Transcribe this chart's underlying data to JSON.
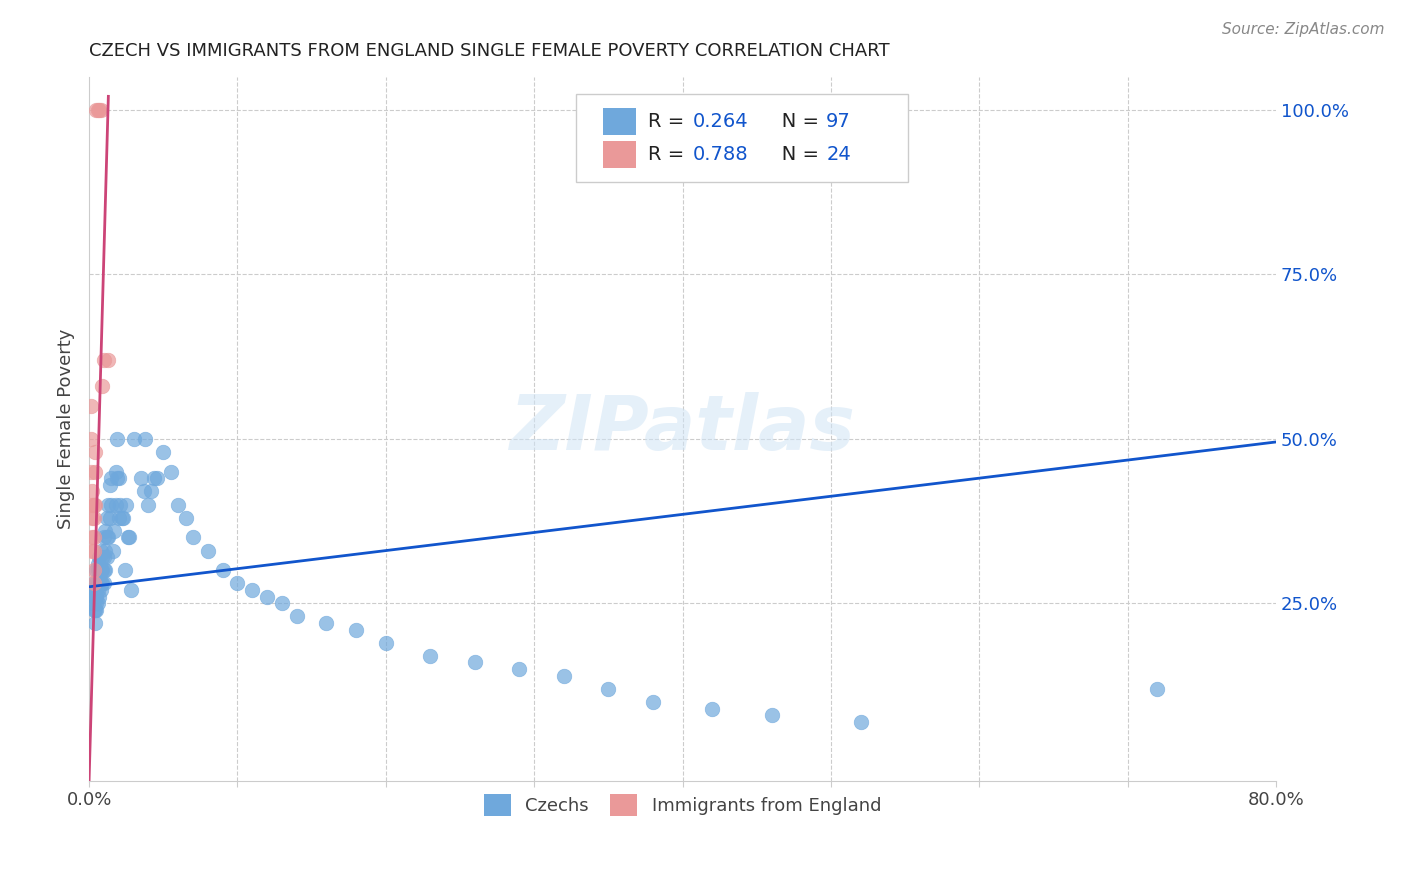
{
  "title": "CZECH VS IMMIGRANTS FROM ENGLAND SINGLE FEMALE POVERTY CORRELATION CHART",
  "source": "Source: ZipAtlas.com",
  "ylabel": "Single Female Poverty",
  "xlim": [
    0.0,
    0.8
  ],
  "ylim": [
    -0.02,
    1.05
  ],
  "blue_color": "#6fa8dc",
  "pink_color": "#ea9999",
  "line_blue": "#1155cc",
  "line_pink": "#cc4477",
  "watermark": "ZIPatlas",
  "czechs_scatter_x": [
    0.002,
    0.002,
    0.003,
    0.003,
    0.003,
    0.004,
    0.004,
    0.004,
    0.004,
    0.005,
    0.005,
    0.005,
    0.005,
    0.005,
    0.005,
    0.006,
    0.006,
    0.006,
    0.006,
    0.006,
    0.007,
    0.007,
    0.007,
    0.007,
    0.007,
    0.008,
    0.008,
    0.008,
    0.008,
    0.009,
    0.009,
    0.009,
    0.01,
    0.01,
    0.01,
    0.01,
    0.011,
    0.011,
    0.011,
    0.012,
    0.012,
    0.012,
    0.013,
    0.013,
    0.014,
    0.014,
    0.015,
    0.015,
    0.016,
    0.017,
    0.018,
    0.018,
    0.019,
    0.019,
    0.02,
    0.02,
    0.021,
    0.022,
    0.023,
    0.024,
    0.025,
    0.026,
    0.027,
    0.028,
    0.03,
    0.035,
    0.037,
    0.038,
    0.04,
    0.042,
    0.044,
    0.046,
    0.05,
    0.055,
    0.06,
    0.065,
    0.07,
    0.08,
    0.09,
    0.1,
    0.11,
    0.12,
    0.13,
    0.14,
    0.16,
    0.18,
    0.2,
    0.23,
    0.26,
    0.29,
    0.32,
    0.35,
    0.38,
    0.42,
    0.46,
    0.52,
    0.72
  ],
  "czechs_scatter_y": [
    0.27,
    0.25,
    0.28,
    0.26,
    0.24,
    0.27,
    0.26,
    0.24,
    0.22,
    0.3,
    0.28,
    0.27,
    0.26,
    0.25,
    0.24,
    0.31,
    0.3,
    0.28,
    0.27,
    0.25,
    0.32,
    0.3,
    0.29,
    0.28,
    0.26,
    0.33,
    0.3,
    0.28,
    0.27,
    0.32,
    0.3,
    0.28,
    0.35,
    0.32,
    0.3,
    0.28,
    0.36,
    0.33,
    0.3,
    0.38,
    0.35,
    0.32,
    0.4,
    0.35,
    0.43,
    0.38,
    0.44,
    0.4,
    0.33,
    0.36,
    0.45,
    0.4,
    0.5,
    0.44,
    0.44,
    0.38,
    0.4,
    0.38,
    0.38,
    0.3,
    0.4,
    0.35,
    0.35,
    0.27,
    0.5,
    0.44,
    0.42,
    0.5,
    0.4,
    0.42,
    0.44,
    0.44,
    0.48,
    0.45,
    0.4,
    0.38,
    0.35,
    0.33,
    0.3,
    0.28,
    0.27,
    0.26,
    0.25,
    0.23,
    0.22,
    0.21,
    0.19,
    0.17,
    0.16,
    0.15,
    0.14,
    0.12,
    0.1,
    0.09,
    0.08,
    0.07,
    0.12
  ],
  "england_scatter_x": [
    0.001,
    0.001,
    0.001,
    0.002,
    0.002,
    0.002,
    0.002,
    0.002,
    0.003,
    0.003,
    0.003,
    0.003,
    0.003,
    0.003,
    0.004,
    0.004,
    0.004,
    0.005,
    0.006,
    0.007,
    0.008,
    0.009,
    0.01,
    0.013
  ],
  "england_scatter_y": [
    0.55,
    0.5,
    0.45,
    0.42,
    0.4,
    0.38,
    0.35,
    0.33,
    0.4,
    0.38,
    0.35,
    0.33,
    0.3,
    0.28,
    0.48,
    0.45,
    0.4,
    1.0,
    1.0,
    1.0,
    1.0,
    0.58,
    0.62,
    0.62
  ],
  "blue_trendline_x": [
    0.0,
    0.8
  ],
  "blue_trendline_y": [
    0.275,
    0.495
  ],
  "pink_trendline_x": [
    0.0,
    0.013
  ],
  "pink_trendline_y": [
    -0.02,
    1.02
  ]
}
